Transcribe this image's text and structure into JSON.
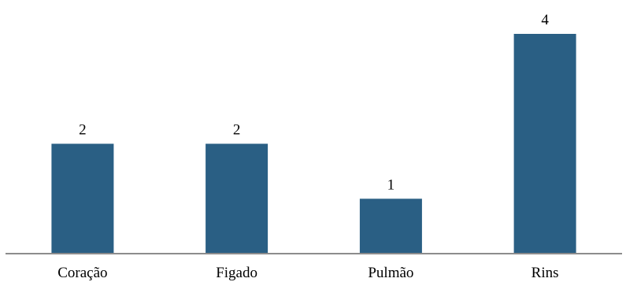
{
  "chart_data": {
    "type": "bar",
    "title": "",
    "xlabel": "",
    "ylabel": "",
    "categories": [
      "Coração",
      "Figado",
      "Pulmão",
      "Rins"
    ],
    "values": [
      2,
      2,
      1,
      4
    ],
    "data_labels": [
      "2",
      "2",
      "1",
      "4"
    ],
    "ylim": [
      0,
      4
    ],
    "grid": false,
    "legend": "none",
    "bar_color": "#2a5f84",
    "axis_color": "#8c8c8c"
  }
}
